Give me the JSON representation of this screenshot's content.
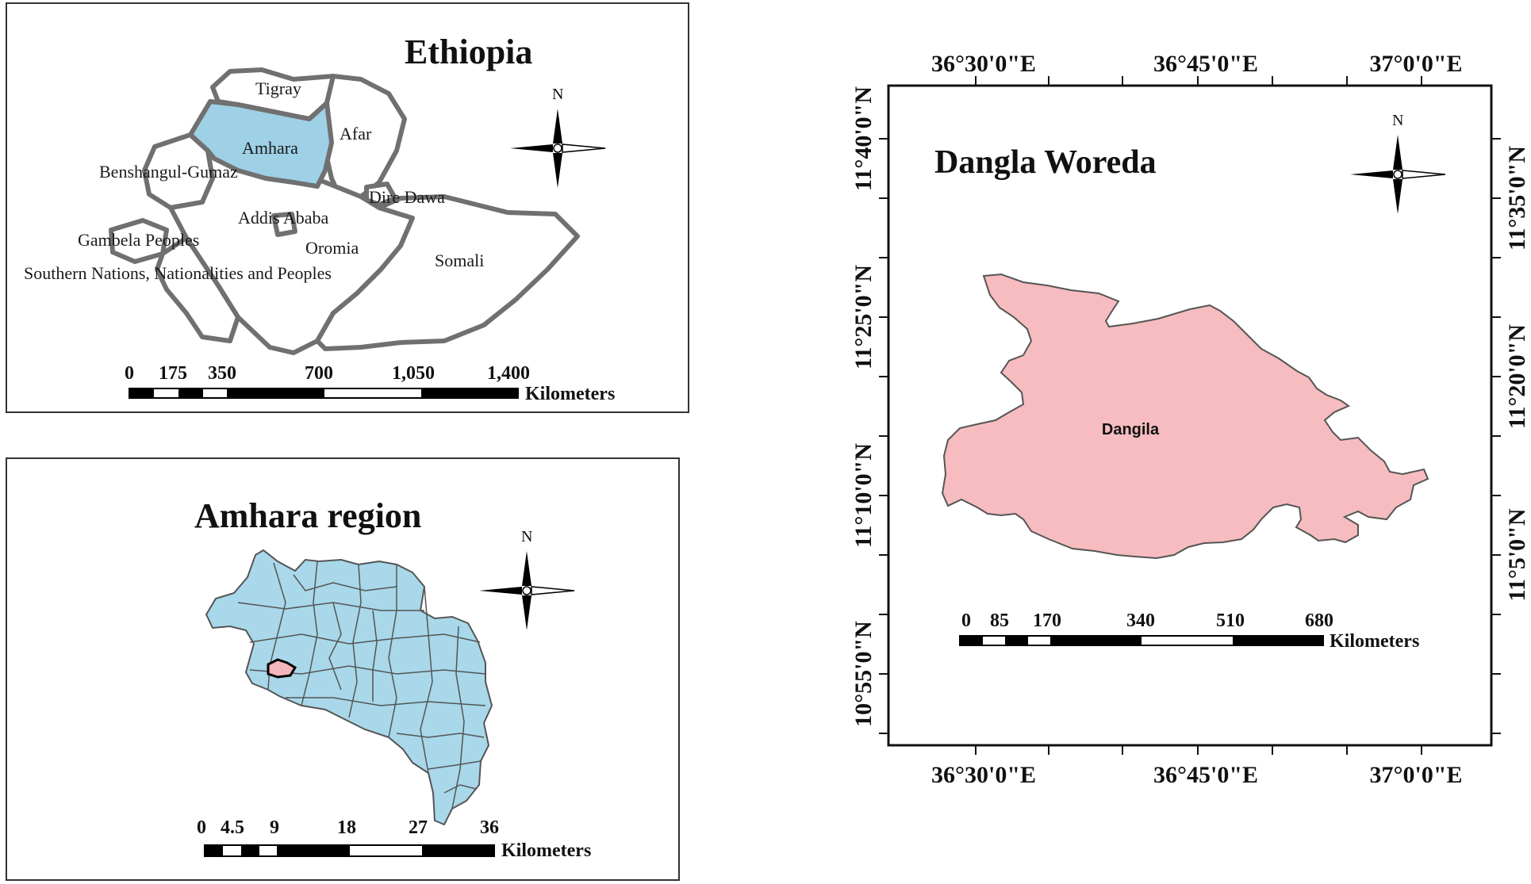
{
  "ethiopia_map": {
    "title": "Ethiopia",
    "highlight_color": "#9ed0e6",
    "boundary_color": "#707070",
    "regions": {
      "tigray": "Tigray",
      "afar": "Afar",
      "amhara": "Amhara",
      "benshangul": "Benshangul-Gumaz",
      "dire_dawa": "Dire Dawa",
      "addis_ababa": "Addis Ababa",
      "gambela": "Gambela Peoples",
      "oromia": "Oromia",
      "somali": "Somali",
      "snnp": "Southern Nations, Nationalities and Peoples"
    },
    "north_label": "N",
    "scale": {
      "ticks": [
        "0",
        "175",
        "350",
        "700",
        "1,050",
        "1,400"
      ],
      "unit": "Kilometers"
    }
  },
  "amhara_map": {
    "title": "Amhara region",
    "fill_color": "#a8d8ea",
    "highlight_color": "#f4b6bb",
    "north_label": "N",
    "scale": {
      "ticks": [
        "0",
        "4.5",
        "9",
        "18",
        "27",
        "36"
      ],
      "unit": "Kilometers"
    }
  },
  "dangla_map": {
    "title": "Dangla Woreda",
    "district_label": "Dangila",
    "fill_color": "#f6bcbf",
    "north_label": "N",
    "top_lon": [
      "36°30'0\"E",
      "36°45'0\"E",
      "37°0'0\"E"
    ],
    "bottom_lon": [
      "36°30'0\"E",
      "36°45'0\"E",
      "37°0'0\"E"
    ],
    "left_lat": [
      "11°40'0\"N",
      "11°25'0\"N",
      "11°10'0\"N",
      "10°55'0\"N"
    ],
    "right_lat": [
      "11°35'0\"N",
      "11°20'0\"N",
      "11°5'0\"N"
    ],
    "scale": {
      "ticks": [
        "0",
        "85",
        "170",
        "340",
        "510",
        "680"
      ],
      "unit": "Kilometers"
    }
  }
}
